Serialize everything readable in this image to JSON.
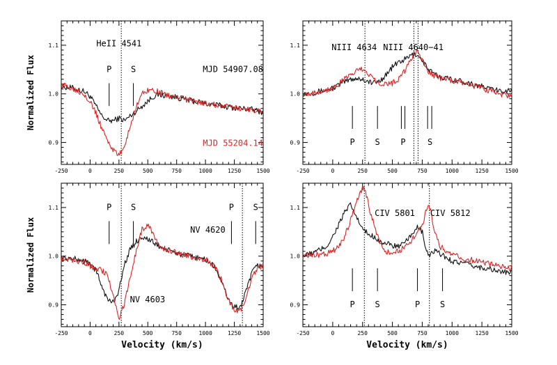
{
  "colors": {
    "black_series": "#111111",
    "red_series": "#dd2222",
    "axis": "#000000"
  },
  "chart_data": [
    {
      "type": "line",
      "panel": "top-left",
      "xlim": [
        -250,
        1500
      ],
      "ylim": [
        0.855,
        1.15
      ],
      "xticks": [
        -250,
        0,
        250,
        500,
        750,
        1000,
        1250,
        1500
      ],
      "xtick_labels": [
        "-250",
        "0",
        "250",
        "500",
        "750",
        "1000",
        "1250",
        "1500"
      ],
      "yticks": [
        0.9,
        1.0,
        1.1
      ],
      "ytick_labels": [
        "0.9",
        "1.0",
        "1.1"
      ],
      "ylabel": "Normalized Flux",
      "xlabel": "",
      "vlines": [
        270
      ],
      "annotations": [
        {
          "text": "HeII 4541",
          "x": 250,
          "y": 1.098,
          "color": "black",
          "anchor": "middle"
        },
        {
          "text": "P",
          "x": 165,
          "y": 1.045,
          "color": "black",
          "anchor": "middle"
        },
        {
          "text": "S",
          "x": 375,
          "y": 1.045,
          "color": "black",
          "anchor": "middle"
        },
        {
          "text": "MJD 54907.08",
          "x": 1500,
          "y": 1.045,
          "color": "black",
          "anchor": "end"
        },
        {
          "text": "MJD 55204.14",
          "x": 1500,
          "y": 0.893,
          "color": "red",
          "anchor": "end"
        }
      ],
      "marker_lines": [
        {
          "x": 165,
          "y1": 0.975,
          "y2": 1.022
        },
        {
          "x": 375,
          "y1": 0.975,
          "y2": 1.022
        }
      ],
      "series": [
        {
          "name": "MJD 54907.08",
          "color": "black",
          "x": [
            -250,
            -150,
            -50,
            0,
            50,
            100,
            150,
            200,
            250,
            300,
            350,
            400,
            450,
            500,
            550,
            600,
            700,
            800,
            900,
            1000,
            1100,
            1200,
            1300,
            1400,
            1500
          ],
          "y": [
            1.015,
            1.012,
            1.005,
            0.995,
            0.975,
            0.955,
            0.945,
            0.945,
            0.95,
            0.945,
            0.955,
            0.965,
            0.975,
            0.985,
            0.995,
            0.998,
            0.995,
            0.99,
            0.985,
            0.98,
            0.977,
            0.973,
            0.97,
            0.968,
            0.962
          ]
        },
        {
          "name": "MJD 55204.14",
          "color": "red",
          "x": [
            -250,
            -150,
            -50,
            0,
            50,
            100,
            150,
            200,
            250,
            300,
            350,
            400,
            450,
            500,
            550,
            600,
            700,
            800,
            900,
            1000,
            1100,
            1200,
            1300,
            1400,
            1500
          ],
          "y": [
            1.018,
            1.012,
            1.0,
            0.985,
            0.96,
            0.93,
            0.905,
            0.885,
            0.872,
            0.895,
            0.935,
            0.975,
            1.0,
            1.008,
            1.008,
            1.003,
            0.995,
            0.99,
            0.985,
            0.98,
            0.977,
            0.973,
            0.97,
            0.968,
            0.962
          ]
        }
      ]
    },
    {
      "type": "line",
      "panel": "top-right",
      "xlim": [
        -250,
        1500
      ],
      "ylim": [
        0.855,
        1.15
      ],
      "xticks": [
        -250,
        0,
        250,
        500,
        750,
        1000,
        1250,
        1500
      ],
      "xtick_labels": [
        "-250",
        "0",
        "250",
        "500",
        "750",
        "1000",
        "1250",
        "1500"
      ],
      "yticks": [
        0.9,
        1.0,
        1.1
      ],
      "ytick_labels": [
        "0.9",
        "1.0",
        "1.1"
      ],
      "ylabel": "",
      "xlabel": "",
      "vlines": [
        270,
        680,
        715
      ],
      "annotations": [
        {
          "text": "NIII 4634",
          "x": 180,
          "y": 1.09,
          "color": "black",
          "anchor": "middle"
        },
        {
          "text": "NIII 4640−41",
          "x": 675,
          "y": 1.09,
          "color": "black",
          "anchor": "middle"
        },
        {
          "text": "P",
          "x": 165,
          "y": 0.895,
          "color": "black",
          "anchor": "middle"
        },
        {
          "text": "S",
          "x": 375,
          "y": 0.895,
          "color": "black",
          "anchor": "middle"
        },
        {
          "text": "P",
          "x": 590,
          "y": 0.895,
          "color": "black",
          "anchor": "middle"
        },
        {
          "text": "S",
          "x": 815,
          "y": 0.895,
          "color": "black",
          "anchor": "middle"
        }
      ],
      "marker_lines": [
        {
          "x": 165,
          "y1": 0.928,
          "y2": 0.975
        },
        {
          "x": 375,
          "y1": 0.928,
          "y2": 0.975
        },
        {
          "x": 575,
          "y1": 0.928,
          "y2": 0.975
        },
        {
          "x": 605,
          "y1": 0.928,
          "y2": 0.975
        },
        {
          "x": 795,
          "y1": 0.928,
          "y2": 0.975
        },
        {
          "x": 830,
          "y1": 0.928,
          "y2": 0.975
        }
      ],
      "series": [
        {
          "name": "MJD 54907.08",
          "color": "black",
          "x": [
            -250,
            -150,
            -50,
            0,
            50,
            100,
            150,
            200,
            250,
            300,
            350,
            400,
            450,
            500,
            550,
            600,
            650,
            700,
            750,
            800,
            850,
            900,
            1000,
            1100,
            1200,
            1300,
            1400,
            1500
          ],
          "y": [
            1.0,
            1.003,
            1.008,
            1.012,
            1.018,
            1.025,
            1.03,
            1.032,
            1.03,
            1.025,
            1.022,
            1.028,
            1.04,
            1.055,
            1.065,
            1.07,
            1.078,
            1.082,
            1.07,
            1.05,
            1.04,
            1.035,
            1.03,
            1.025,
            1.018,
            1.012,
            1.005,
            1.008
          ]
        },
        {
          "name": "MJD 55204.14",
          "color": "red",
          "x": [
            -250,
            -150,
            -50,
            0,
            50,
            100,
            150,
            200,
            250,
            300,
            350,
            400,
            450,
            500,
            550,
            600,
            650,
            700,
            750,
            800,
            850,
            900,
            1000,
            1100,
            1200,
            1300,
            1400,
            1500
          ],
          "y": [
            1.0,
            1.003,
            1.008,
            1.012,
            1.02,
            1.03,
            1.04,
            1.048,
            1.05,
            1.042,
            1.03,
            1.022,
            1.02,
            1.022,
            1.03,
            1.045,
            1.07,
            1.088,
            1.07,
            1.048,
            1.038,
            1.032,
            1.028,
            1.022,
            1.015,
            1.008,
            1.0,
            0.995
          ]
        }
      ]
    },
    {
      "type": "line",
      "panel": "bottom-left",
      "xlim": [
        -250,
        1500
      ],
      "ylim": [
        0.855,
        1.15
      ],
      "xticks": [
        -250,
        0,
        250,
        500,
        750,
        1000,
        1250,
        1500
      ],
      "xtick_labels": [
        "-250",
        "0",
        "250",
        "500",
        "750",
        "1000",
        "1250",
        "1500"
      ],
      "yticks": [
        0.9,
        1.0,
        1.1
      ],
      "ytick_labels": [
        "0.9",
        "1.0",
        "1.1"
      ],
      "ylabel": "Normalized Flux",
      "xlabel": "Velocity (km/s)",
      "vlines": [
        270,
        1320
      ],
      "annotations": [
        {
          "text": "P",
          "x": 165,
          "y": 1.095,
          "color": "black",
          "anchor": "middle"
        },
        {
          "text": "S",
          "x": 375,
          "y": 1.095,
          "color": "black",
          "anchor": "middle"
        },
        {
          "text": "P",
          "x": 1225,
          "y": 1.095,
          "color": "black",
          "anchor": "middle"
        },
        {
          "text": "S",
          "x": 1435,
          "y": 1.095,
          "color": "black",
          "anchor": "middle"
        },
        {
          "text": "NV 4620",
          "x": 1020,
          "y": 1.048,
          "color": "black",
          "anchor": "middle"
        },
        {
          "text": "NV 4603",
          "x": 345,
          "y": 0.905,
          "color": "black",
          "anchor": "start"
        }
      ],
      "marker_lines": [
        {
          "x": 165,
          "y1": 1.025,
          "y2": 1.072
        },
        {
          "x": 375,
          "y1": 1.025,
          "y2": 1.072
        },
        {
          "x": 1225,
          "y1": 1.025,
          "y2": 1.072
        },
        {
          "x": 1435,
          "y1": 1.025,
          "y2": 1.072
        }
      ],
      "series": [
        {
          "name": "MJD 54907.08",
          "color": "black",
          "x": [
            -250,
            -150,
            -50,
            0,
            50,
            100,
            150,
            200,
            250,
            300,
            350,
            400,
            450,
            500,
            600,
            700,
            800,
            900,
            1000,
            1050,
            1100,
            1150,
            1200,
            1250,
            1300,
            1350,
            1400,
            1450,
            1500
          ],
          "y": [
            0.995,
            0.995,
            0.99,
            0.985,
            0.97,
            0.94,
            0.91,
            0.905,
            0.93,
            0.985,
            1.015,
            1.03,
            1.04,
            1.035,
            1.02,
            1.01,
            1.003,
            0.998,
            0.993,
            0.985,
            0.97,
            0.94,
            0.91,
            0.895,
            0.895,
            0.925,
            0.965,
            0.98,
            0.982
          ]
        },
        {
          "name": "MJD 55204.14",
          "color": "red",
          "x": [
            -250,
            -150,
            -50,
            0,
            50,
            100,
            150,
            200,
            250,
            300,
            350,
            400,
            450,
            500,
            550,
            600,
            700,
            800,
            900,
            1000,
            1050,
            1100,
            1150,
            1200,
            1250,
            1300,
            1350,
            1400,
            1450,
            1500
          ],
          "y": [
            0.995,
            0.993,
            0.988,
            0.98,
            0.975,
            0.972,
            0.96,
            0.92,
            0.87,
            0.905,
            0.96,
            1.01,
            1.055,
            1.065,
            1.045,
            1.02,
            1.01,
            1.003,
            0.998,
            0.993,
            0.985,
            0.97,
            0.945,
            0.91,
            0.89,
            0.885,
            0.915,
            0.955,
            0.975,
            0.98
          ]
        }
      ]
    },
    {
      "type": "line",
      "panel": "bottom-right",
      "xlim": [
        -250,
        1500
      ],
      "ylim": [
        0.855,
        1.15
      ],
      "xticks": [
        -250,
        0,
        250,
        500,
        750,
        1000,
        1250,
        1500
      ],
      "xtick_labels": [
        "-250",
        "0",
        "250",
        "500",
        "750",
        "1000",
        "1250",
        "1500"
      ],
      "yticks": [
        0.9,
        1.0,
        1.1
      ],
      "ytick_labels": [
        "0.9",
        "1.0",
        "1.1"
      ],
      "ylabel": "",
      "xlabel": "Velocity (km/s)",
      "vlines": [
        265,
        810
      ],
      "annotations": [
        {
          "text": "CIV 5801",
          "x": 520,
          "y": 1.083,
          "color": "black",
          "anchor": "middle"
        },
        {
          "text": "CIV 5812",
          "x": 985,
          "y": 1.083,
          "color": "black",
          "anchor": "middle"
        },
        {
          "text": "P",
          "x": 165,
          "y": 0.895,
          "color": "black",
          "anchor": "middle"
        },
        {
          "text": "S",
          "x": 375,
          "y": 0.895,
          "color": "black",
          "anchor": "middle"
        },
        {
          "text": "P",
          "x": 710,
          "y": 0.895,
          "color": "black",
          "anchor": "middle"
        },
        {
          "text": "S",
          "x": 920,
          "y": 0.895,
          "color": "black",
          "anchor": "middle"
        }
      ],
      "marker_lines": [
        {
          "x": 165,
          "y1": 0.928,
          "y2": 0.975
        },
        {
          "x": 375,
          "y1": 0.928,
          "y2": 0.975
        },
        {
          "x": 710,
          "y1": 0.928,
          "y2": 0.975
        },
        {
          "x": 920,
          "y1": 0.928,
          "y2": 0.975
        }
      ],
      "series": [
        {
          "name": "MJD 54907.08",
          "color": "black",
          "x": [
            -250,
            -150,
            -50,
            0,
            50,
            100,
            150,
            200,
            250,
            300,
            350,
            400,
            450,
            500,
            550,
            600,
            650,
            700,
            750,
            780,
            800,
            850,
            900,
            1000,
            1100,
            1200,
            1300,
            1400,
            1500
          ],
          "y": [
            1.0,
            1.008,
            1.02,
            1.04,
            1.065,
            1.09,
            1.105,
            1.08,
            1.055,
            1.045,
            1.04,
            1.03,
            1.025,
            1.022,
            1.02,
            1.025,
            1.04,
            1.06,
            1.05,
            1.015,
            1.0,
            1.01,
            1.005,
            0.99,
            0.985,
            0.978,
            0.975,
            0.968,
            0.965
          ]
        },
        {
          "name": "MJD 55204.14",
          "color": "red",
          "x": [
            -250,
            -150,
            -50,
            0,
            50,
            100,
            150,
            200,
            250,
            270,
            300,
            350,
            400,
            450,
            500,
            550,
            600,
            650,
            700,
            750,
            780,
            800,
            820,
            850,
            900,
            1000,
            1100,
            1200,
            1300,
            1400,
            1500
          ],
          "y": [
            1.0,
            1.002,
            1.005,
            1.01,
            1.02,
            1.04,
            1.075,
            1.115,
            1.14,
            1.138,
            1.105,
            1.06,
            1.025,
            1.01,
            1.005,
            1.01,
            1.018,
            1.03,
            1.045,
            1.065,
            1.09,
            1.11,
            1.095,
            1.055,
            1.02,
            1.003,
            0.995,
            0.99,
            0.985,
            0.98,
            0.978
          ]
        }
      ]
    }
  ]
}
